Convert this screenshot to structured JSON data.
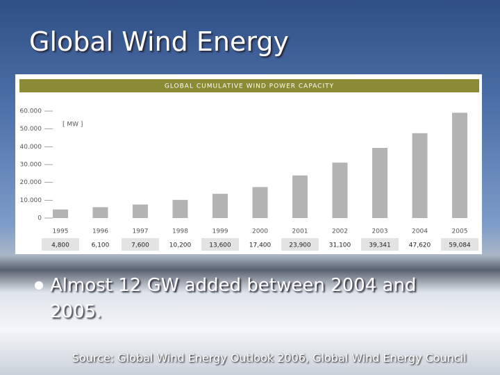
{
  "slide": {
    "title": "Global Wind Energy",
    "bullet": "Almost 12 GW added between 2004 and 2005.",
    "source": "Source: Global Wind Energy Outlook 2006, Global Wind Energy Council"
  },
  "chart_data": {
    "type": "bar",
    "title": "GLOBAL CUMULATIVE WIND POWER CAPACITY",
    "unit_label": "[ MW ]",
    "categories": [
      "1995",
      "1996",
      "1997",
      "1998",
      "1999",
      "2000",
      "2001",
      "2002",
      "2003",
      "2004",
      "2005"
    ],
    "values": [
      4800,
      6100,
      7600,
      10200,
      13600,
      17400,
      23900,
      31100,
      39341,
      47620,
      59084
    ],
    "value_labels": [
      "4,800",
      "6,100",
      "7,600",
      "10,200",
      "13,600",
      "17,400",
      "23,900",
      "31,100",
      "39,341",
      "47,620",
      "59,084"
    ],
    "color": "#b3b3b3",
    "ylim": [
      0,
      60000
    ],
    "yticks": [
      0,
      {
        "value": 10000,
        "label": "10.000"
      },
      {
        "value": 20000,
        "label": "20.000"
      },
      {
        "value": 30000,
        "label": "30.000"
      },
      {
        "value": 40000,
        "label": "40.000"
      },
      {
        "value": 50000,
        "label": "50.000"
      },
      {
        "value": 60000,
        "label": "60.000"
      }
    ]
  }
}
